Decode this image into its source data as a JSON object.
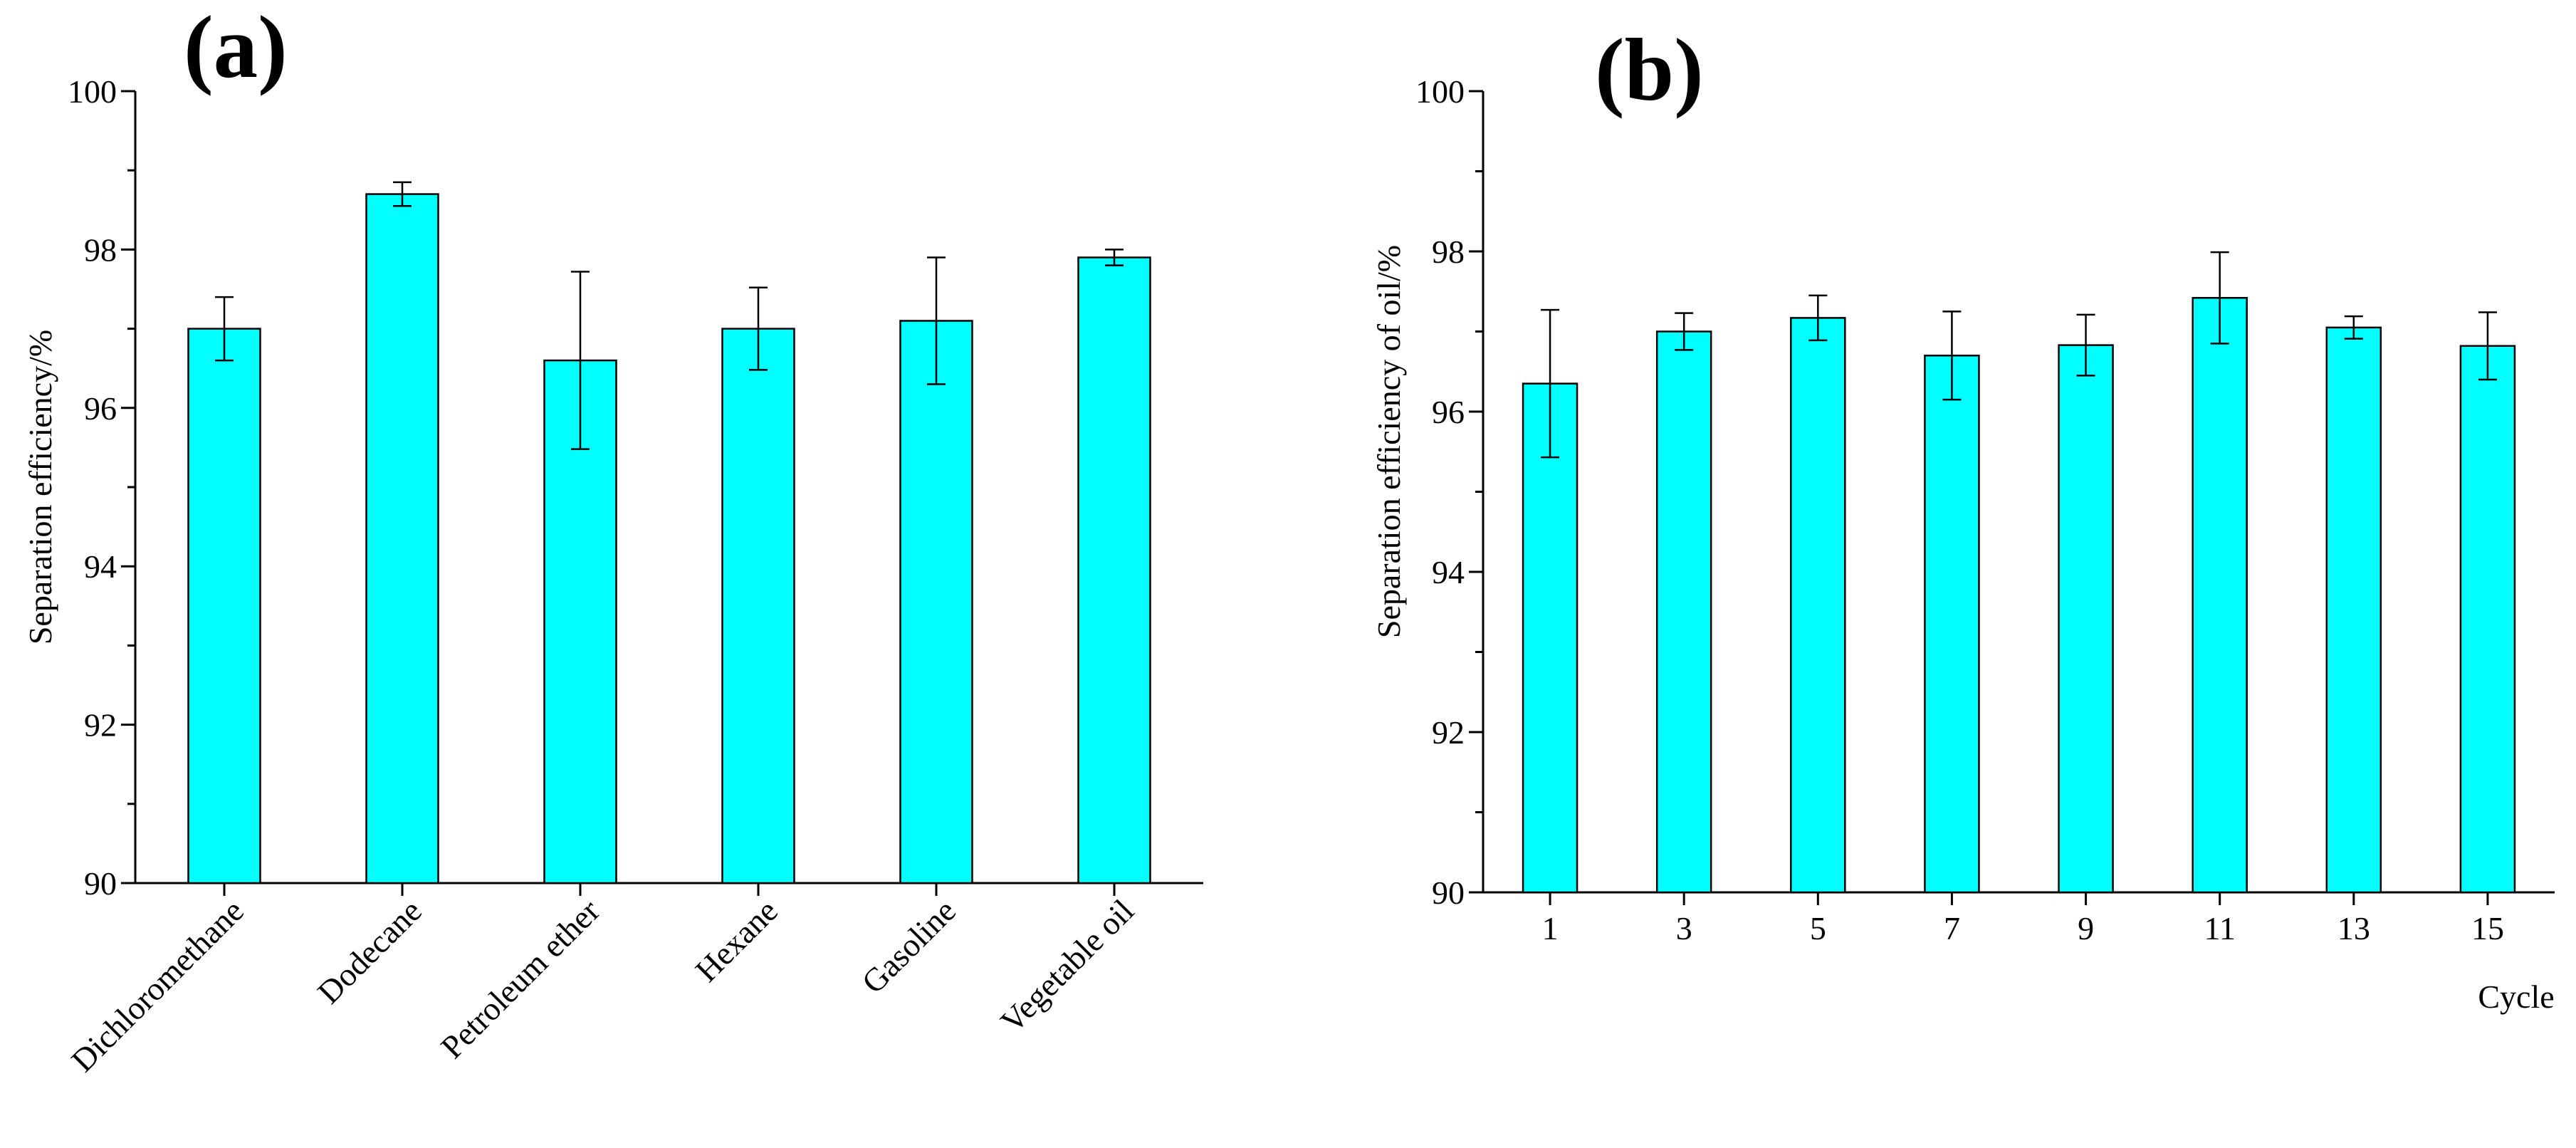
{
  "chart_data": [
    {
      "panel": "(a)",
      "type": "bar",
      "title": "",
      "xlabel": "",
      "ylabel": "Separation efficiency/%",
      "ylim": [
        90,
        100
      ],
      "yticks": [
        "90",
        "92",
        "94",
        "96",
        "98",
        "100"
      ],
      "categories": [
        "Dichloromethane",
        "Dodecane",
        "Petroleum ether",
        "Hexane",
        "Gasoline",
        "Vegetable oil"
      ],
      "values": [
        97.0,
        98.7,
        96.6,
        97.0,
        97.1,
        97.9
      ],
      "errors": [
        0.4,
        0.15,
        1.12,
        0.52,
        0.8,
        0.1
      ],
      "bar_color": "#00ffff"
    },
    {
      "panel": "(b)",
      "type": "bar",
      "title": "",
      "xlabel": "Cycle",
      "ylabel": "Separation efficiency of oil/%",
      "ylim": [
        90,
        100
      ],
      "yticks": [
        "90",
        "92",
        "94",
        "96",
        "98",
        "100"
      ],
      "categories": [
        "1",
        "3",
        "5",
        "7",
        "9",
        "11",
        "13",
        "15"
      ],
      "values": [
        96.35,
        97.0,
        97.17,
        96.7,
        96.83,
        97.42,
        97.05,
        96.82
      ],
      "errors": [
        0.92,
        0.23,
        0.28,
        0.55,
        0.38,
        0.57,
        0.14,
        0.42
      ],
      "bar_color": "#00ffff"
    }
  ]
}
